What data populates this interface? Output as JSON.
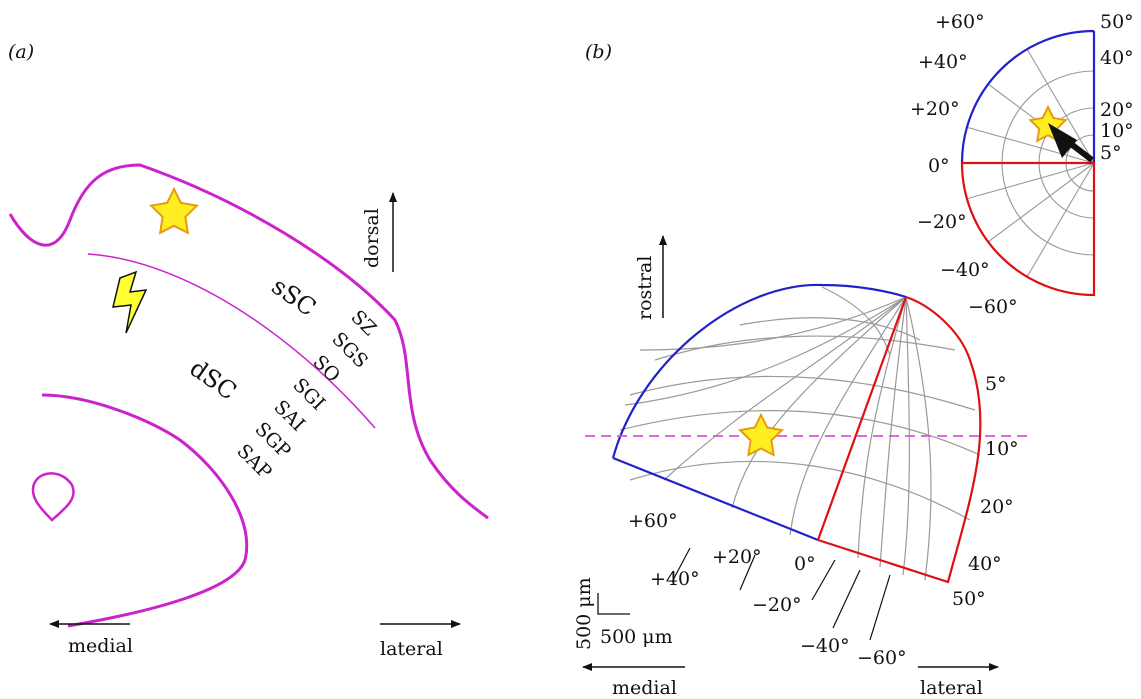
{
  "panel_a": {
    "label": "(a)",
    "region_labels": {
      "ssc": "sSC",
      "dsc": "dSC"
    },
    "layer_labels": [
      "SZ",
      "SGS",
      "SO",
      "SGI",
      "SAI",
      "SGP",
      "SAP"
    ],
    "direction_labels": {
      "dorsal": "dorsal",
      "medial": "medial",
      "lateral": "lateral"
    },
    "icons": [
      "star-icon",
      "lightning-icon"
    ],
    "colors": {
      "outline": "#cc22cc",
      "star_fill": "#ffee22",
      "star_stroke": "#e89a10",
      "bolt_fill": "#ffff33"
    }
  },
  "panel_b": {
    "label": "(b)",
    "map_direction_labels": {
      "rostral": "rostral",
      "medial": "medial",
      "lateral": "lateral"
    },
    "map_angle_labels": {
      "elevation": [
        "+60°",
        "+20°",
        "+40°",
        "0°",
        "−20°",
        "−40°",
        "−60°"
      ],
      "azimuth": [
        "5°",
        "10°",
        "20°",
        "40°",
        "50°"
      ]
    },
    "scale_bar": {
      "vertical": "500 μm",
      "horizontal": "500 μm"
    },
    "inset_labels": {
      "elevation": [
        "+60°",
        "+40°",
        "+20°",
        "0°",
        "−20°",
        "−40°",
        "−60°"
      ],
      "eccentricity": [
        "50°",
        "40°",
        "20°",
        "10°",
        "5°"
      ]
    },
    "colors": {
      "upper_field": "#2222cc",
      "lower_field": "#dd1111",
      "grid": "#999999",
      "guide_line": "#dd55dd"
    }
  }
}
